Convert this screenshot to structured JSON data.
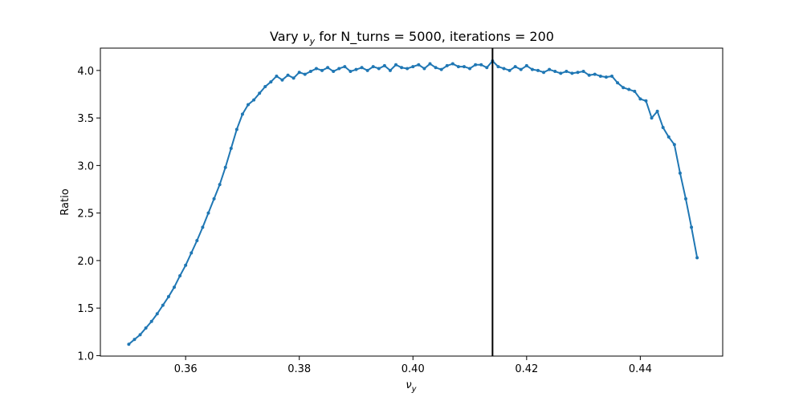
{
  "chart_data": {
    "type": "line",
    "title_prefix": "Vary ",
    "title_sym": "ν",
    "title_sub": "y",
    "title_suffix": " for N_turns = 5000, iterations = 200",
    "xlabel_sym": "ν",
    "xlabel_sub": "y",
    "ylabel": "Ratio",
    "xlim": [
      0.345,
      0.4545
    ],
    "ylim": [
      0.995,
      4.235
    ],
    "xticks": [
      0.36,
      0.38,
      0.4,
      0.42,
      0.44
    ],
    "xtick_labels": [
      "0.36",
      "0.38",
      "0.40",
      "0.42",
      "0.44"
    ],
    "yticks": [
      1.0,
      1.5,
      2.0,
      2.5,
      3.0,
      3.5,
      4.0
    ],
    "ytick_labels": [
      "1.0",
      "1.5",
      "2.0",
      "2.5",
      "3.0",
      "3.5",
      "4.0"
    ],
    "vline_x": 0.414,
    "grid": false,
    "line_color": "#1f77b4",
    "vline_color": "#000000",
    "series": [
      {
        "x": [
          0.35,
          0.351,
          0.352,
          0.353,
          0.354,
          0.355,
          0.356,
          0.357,
          0.358,
          0.359,
          0.36,
          0.361,
          0.362,
          0.363,
          0.364,
          0.365,
          0.366,
          0.367,
          0.368,
          0.369,
          0.37,
          0.371,
          0.372,
          0.373,
          0.374,
          0.375,
          0.376,
          0.377,
          0.378,
          0.379,
          0.38,
          0.381,
          0.382,
          0.383,
          0.384,
          0.385,
          0.386,
          0.387,
          0.388,
          0.389,
          0.39,
          0.391,
          0.392,
          0.393,
          0.394,
          0.395,
          0.396,
          0.397,
          0.398,
          0.399,
          0.4,
          0.401,
          0.402,
          0.403,
          0.404,
          0.405,
          0.406,
          0.407,
          0.408,
          0.409,
          0.41,
          0.411,
          0.412,
          0.413,
          0.414,
          0.415,
          0.416,
          0.417,
          0.418,
          0.419,
          0.42,
          0.421,
          0.422,
          0.423,
          0.424,
          0.425,
          0.426,
          0.427,
          0.428,
          0.429,
          0.43,
          0.431,
          0.432,
          0.433,
          0.434,
          0.435,
          0.436,
          0.437,
          0.438,
          0.439,
          0.44,
          0.441,
          0.442,
          0.443,
          0.444,
          0.445,
          0.446,
          0.447,
          0.448,
          0.449,
          0.45
        ],
        "y": [
          1.12,
          1.17,
          1.22,
          1.29,
          1.36,
          1.44,
          1.53,
          1.62,
          1.72,
          1.84,
          1.95,
          2.08,
          2.21,
          2.35,
          2.5,
          2.65,
          2.8,
          2.98,
          3.18,
          3.38,
          3.54,
          3.64,
          3.69,
          3.76,
          3.83,
          3.88,
          3.94,
          3.9,
          3.95,
          3.92,
          3.98,
          3.96,
          3.99,
          4.02,
          4.0,
          4.03,
          3.99,
          4.02,
          4.04,
          3.99,
          4.01,
          4.03,
          4.0,
          4.04,
          4.02,
          4.05,
          4.0,
          4.06,
          4.03,
          4.02,
          4.04,
          4.06,
          4.02,
          4.07,
          4.03,
          4.01,
          4.05,
          4.07,
          4.04,
          4.04,
          4.02,
          4.06,
          4.06,
          4.03,
          4.1,
          4.04,
          4.02,
          4.0,
          4.04,
          4.01,
          4.05,
          4.01,
          4.0,
          3.98,
          4.01,
          3.99,
          3.97,
          3.99,
          3.97,
          3.98,
          3.99,
          3.95,
          3.96,
          3.94,
          3.93,
          3.94,
          3.87,
          3.82,
          3.8,
          3.78,
          3.7,
          3.68,
          3.5,
          3.57,
          3.4,
          3.3,
          3.22,
          2.92,
          2.65,
          2.35,
          2.03
        ]
      }
    ]
  }
}
